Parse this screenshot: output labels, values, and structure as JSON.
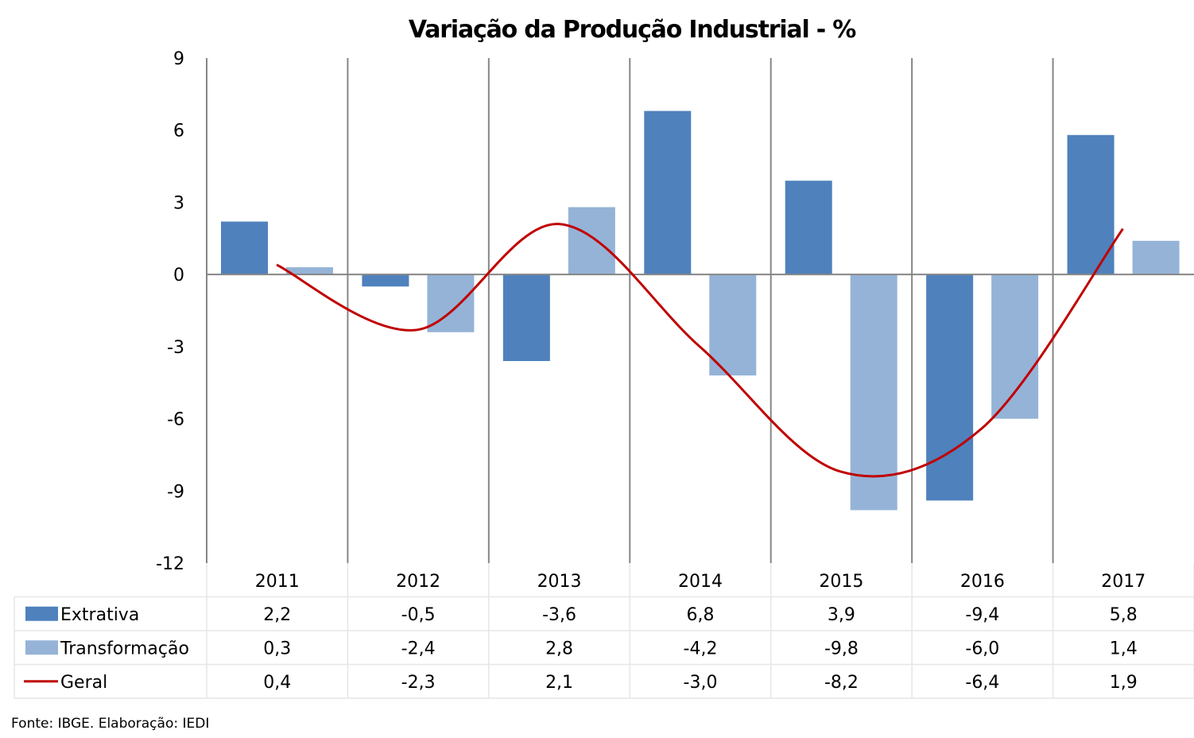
{
  "chart_data": {
    "type": "bar",
    "title": "Variação da Produção Industrial - %",
    "xlabel": "",
    "ylabel": "",
    "categories": [
      "2011",
      "2012",
      "2013",
      "2014",
      "2015",
      "2016",
      "2017"
    ],
    "ylim": [
      -12,
      9
    ],
    "yticks": [
      9,
      6,
      3,
      0,
      -3,
      -6,
      -9,
      -12
    ],
    "ytick_labels": [
      "9",
      "6",
      "3",
      "0",
      "-3",
      "-6",
      "-9",
      "-12"
    ],
    "grid": "vertical category separators",
    "legend": "data-table-bottom",
    "series": [
      {
        "name": "Extrativa",
        "kind": "bar",
        "color": "#4F81BD",
        "values": [
          2.2,
          -0.5,
          -3.6,
          6.8,
          3.9,
          -9.4,
          5.8
        ],
        "labels": [
          "2,2",
          "-0,5",
          "-3,6",
          "6,8",
          "3,9",
          "-9,4",
          "5,8"
        ]
      },
      {
        "name": "Transformação",
        "kind": "bar",
        "color": "#95B3D7",
        "values": [
          0.3,
          -2.4,
          2.8,
          -4.2,
          -9.8,
          -6.0,
          1.4
        ],
        "labels": [
          "0,3",
          "-2,4",
          "2,8",
          "-4,2",
          "-9,8",
          "-6,0",
          "1,4"
        ]
      },
      {
        "name": "Geral",
        "kind": "line",
        "smooth": true,
        "color": "#C00000",
        "values": [
          0.4,
          -2.3,
          2.1,
          -3.0,
          -8.2,
          -6.4,
          1.9
        ],
        "labels": [
          "0,4",
          "-2,3",
          "2,1",
          "-3,0",
          "-8,2",
          "-6,4",
          "1,9"
        ]
      }
    ],
    "source_note": "Fonte: IBGE. Elaboração: IEDI"
  }
}
